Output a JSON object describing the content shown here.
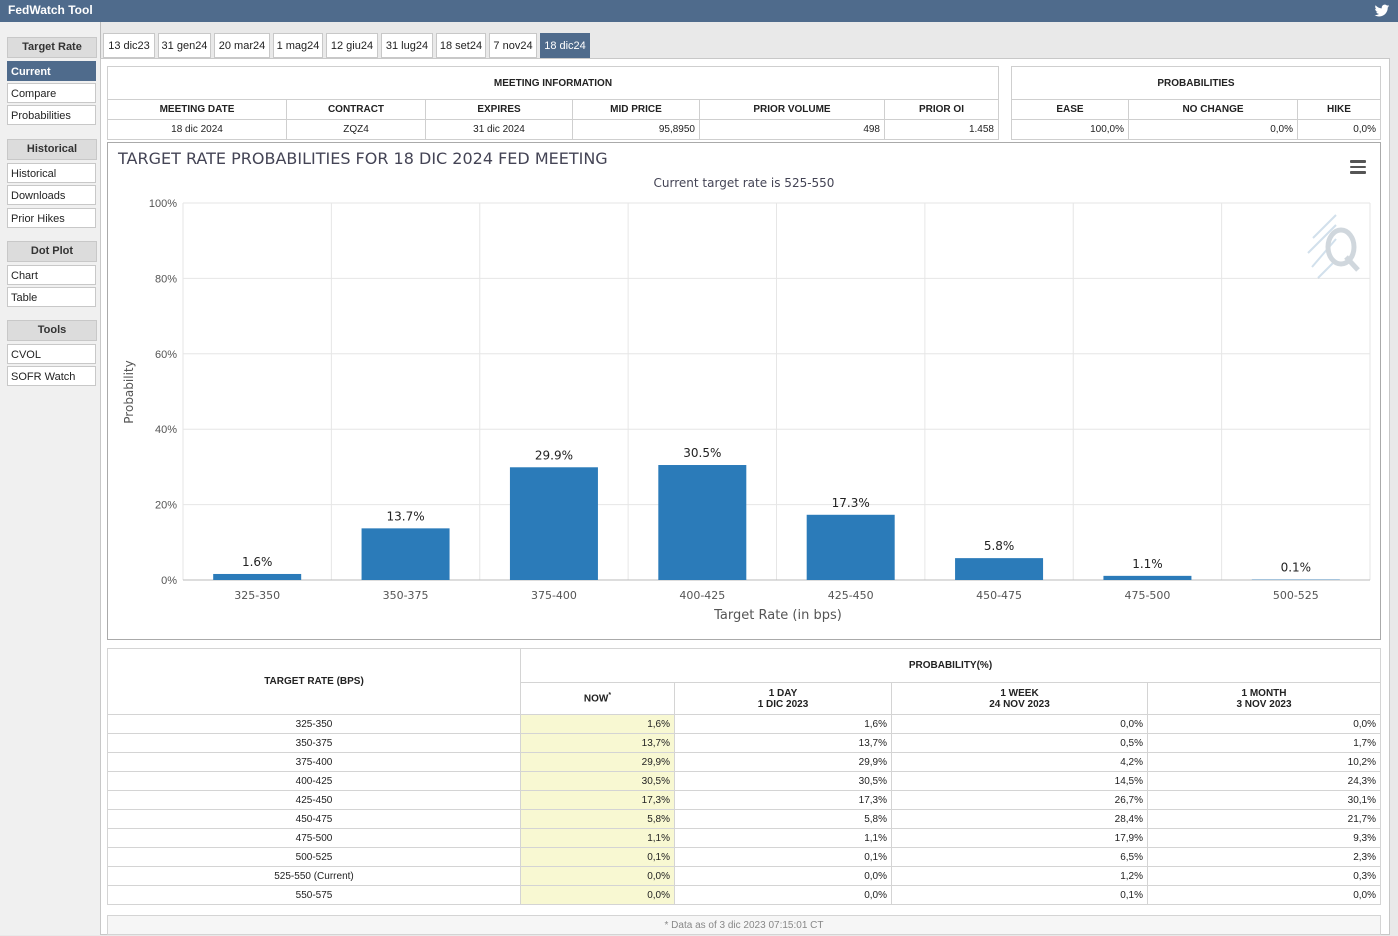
{
  "app_title": "FedWatch Tool",
  "sidebar": {
    "sections": [
      {
        "heading": "Target Rate",
        "items": [
          {
            "label": "Current",
            "active": true
          },
          {
            "label": "Compare"
          },
          {
            "label": "Probabilities"
          }
        ]
      },
      {
        "heading": "Historical",
        "items": [
          {
            "label": "Historical"
          },
          {
            "label": "Downloads"
          },
          {
            "label": "Prior Hikes"
          }
        ]
      },
      {
        "heading": "Dot Plot",
        "items": [
          {
            "label": "Chart"
          },
          {
            "label": "Table"
          }
        ]
      },
      {
        "heading": "Tools",
        "items": [
          {
            "label": "CVOL"
          },
          {
            "label": "SOFR Watch"
          }
        ]
      }
    ]
  },
  "tabs": [
    "13 dic23",
    "31 gen24",
    "20 mar24",
    "1 mag24",
    "12 giu24",
    "31 lug24",
    "18 set24",
    "7 nov24",
    "18 dic24"
  ],
  "active_tab": 8,
  "meeting_info": {
    "title": "MEETING INFORMATION",
    "headers": [
      "MEETING DATE",
      "CONTRACT",
      "EXPIRES",
      "MID PRICE",
      "PRIOR VOLUME",
      "PRIOR OI"
    ],
    "values": [
      "18 dic 2024",
      "ZQZ4",
      "31 dic 2024",
      "95,8950",
      "498",
      "1.458"
    ]
  },
  "probabilities_box": {
    "title": "PROBABILITIES",
    "headers": [
      "EASE",
      "NO CHANGE",
      "HIKE"
    ],
    "values": [
      "100,0%",
      "0,0%",
      "0,0%"
    ]
  },
  "chart_data": {
    "type": "bar",
    "title": "TARGET RATE PROBABILITIES FOR 18 DIC 2024 FED MEETING",
    "subtitle": "Current target rate is 525-550",
    "xlabel": "Target Rate (in bps)",
    "ylabel": "Probability",
    "categories": [
      "325-350",
      "350-375",
      "375-400",
      "400-425",
      "425-450",
      "450-475",
      "475-500",
      "500-525"
    ],
    "values": [
      1.6,
      13.7,
      29.9,
      30.5,
      17.3,
      5.8,
      1.1,
      0.1
    ],
    "data_labels": [
      "1.6%",
      "13.7%",
      "29.9%",
      "30.5%",
      "17.3%",
      "5.8%",
      "1.1%",
      "0.1%"
    ],
    "yticks": [
      "0%",
      "20%",
      "40%",
      "60%",
      "80%",
      "100%"
    ],
    "ylim": [
      0,
      100
    ],
    "grid": true,
    "bar_color": "#2b7bb9"
  },
  "prob_table": {
    "target_header": "TARGET RATE (BPS)",
    "prob_header": "PROBABILITY(%)",
    "now_header": "NOW",
    "now_marker": "*",
    "day_header": [
      "1 DAY",
      "1 DIC 2023"
    ],
    "week_header": [
      "1 WEEK",
      "24 NOV 2023"
    ],
    "month_header": [
      "1 MONTH",
      "3 NOV 2023"
    ],
    "rows": [
      {
        "rate": "325-350",
        "now": "1,6%",
        "day": "1,6%",
        "week": "0,0%",
        "month": "0,0%"
      },
      {
        "rate": "350-375",
        "now": "13,7%",
        "day": "13,7%",
        "week": "0,5%",
        "month": "1,7%"
      },
      {
        "rate": "375-400",
        "now": "29,9%",
        "day": "29,9%",
        "week": "4,2%",
        "month": "10,2%"
      },
      {
        "rate": "400-425",
        "now": "30,5%",
        "day": "30,5%",
        "week": "14,5%",
        "month": "24,3%"
      },
      {
        "rate": "425-450",
        "now": "17,3%",
        "day": "17,3%",
        "week": "26,7%",
        "month": "30,1%"
      },
      {
        "rate": "450-475",
        "now": "5,8%",
        "day": "5,8%",
        "week": "28,4%",
        "month": "21,7%"
      },
      {
        "rate": "475-500",
        "now": "1,1%",
        "day": "1,1%",
        "week": "17,9%",
        "month": "9,3%"
      },
      {
        "rate": "500-525",
        "now": "0,1%",
        "day": "0,1%",
        "week": "6,5%",
        "month": "2,3%"
      },
      {
        "rate": "525-550 (Current)",
        "now": "0,0%",
        "day": "0,0%",
        "week": "1,2%",
        "month": "0,3%"
      },
      {
        "rate": "550-575",
        "now": "0,0%",
        "day": "0,0%",
        "week": "0,1%",
        "month": "0,0%"
      }
    ],
    "footnote": "* Data as of 3 dic 2023 07:15:01 CT"
  },
  "icons": {
    "twitter": "twitter-bird-icon",
    "menu": "hamburger-menu-icon",
    "watermark": "quikstrike-q-logo"
  }
}
